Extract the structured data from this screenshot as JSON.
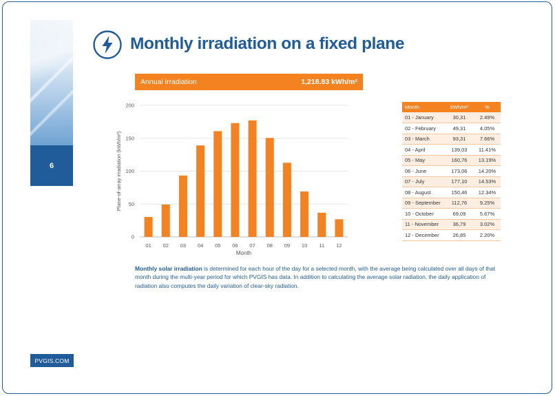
{
  "page_number": "6",
  "footer": "PVGIS.COM",
  "title": "Monthly irradiation on a fixed plane",
  "annual": {
    "label": "Annual irradiation",
    "value": "1,218.83 kWh/m²"
  },
  "chart_data": {
    "type": "bar",
    "categories": [
      "01",
      "02",
      "03",
      "04",
      "05",
      "06",
      "07",
      "08",
      "09",
      "10",
      "11",
      "12"
    ],
    "values": [
      30.31,
      49.31,
      93.31,
      139.03,
      160.76,
      173.06,
      177.1,
      150.46,
      112.76,
      69.09,
      36.79,
      26.85
    ],
    "xlabel": "Month",
    "ylabel": "Plane-of-array irradiation (kWh/m²)",
    "ylim": [
      0,
      200
    ],
    "yticks": [
      0,
      50,
      100,
      150,
      200
    ],
    "grid": true,
    "color": "#f58220"
  },
  "table": {
    "headers": [
      "Month",
      "kWh/m²",
      "%"
    ],
    "rows": [
      [
        "01 - January",
        "30,31",
        "2.49%"
      ],
      [
        "02 - February",
        "49,31",
        "4,05%"
      ],
      [
        "03 - March",
        "93,31",
        "7.66%"
      ],
      [
        "04 - April",
        "139,03",
        "11.41%"
      ],
      [
        "05 - May",
        "160,76",
        "13.19%"
      ],
      [
        "06 - June",
        "173,06",
        "14.20%"
      ],
      [
        "07 - July",
        "177,10",
        "14.53%"
      ],
      [
        "08 - August",
        "150,46",
        "12.34%"
      ],
      [
        "09 - September",
        "112,76",
        "9.25%"
      ],
      [
        "10 - October",
        "69,09",
        "5.67%"
      ],
      [
        "11 - November",
        "36,79",
        "3.02%"
      ],
      [
        "12 - December",
        "26,85",
        "2.20%"
      ]
    ]
  },
  "description": {
    "lead": "Monthly solar irradiation",
    "body": " is determined for each hour of the day for a selected month, with the average being calculated over all days of that month during the multi-year period for which PVGIS has data. In addition to calculating the average solar radiation, the daily application of radiation also computes the daily variation of clear-sky radiation."
  },
  "colors": {
    "brand_blue": "#1f5c99",
    "accent_orange": "#f58220"
  },
  "icons": {
    "title": "lightning-bolt-icon"
  }
}
